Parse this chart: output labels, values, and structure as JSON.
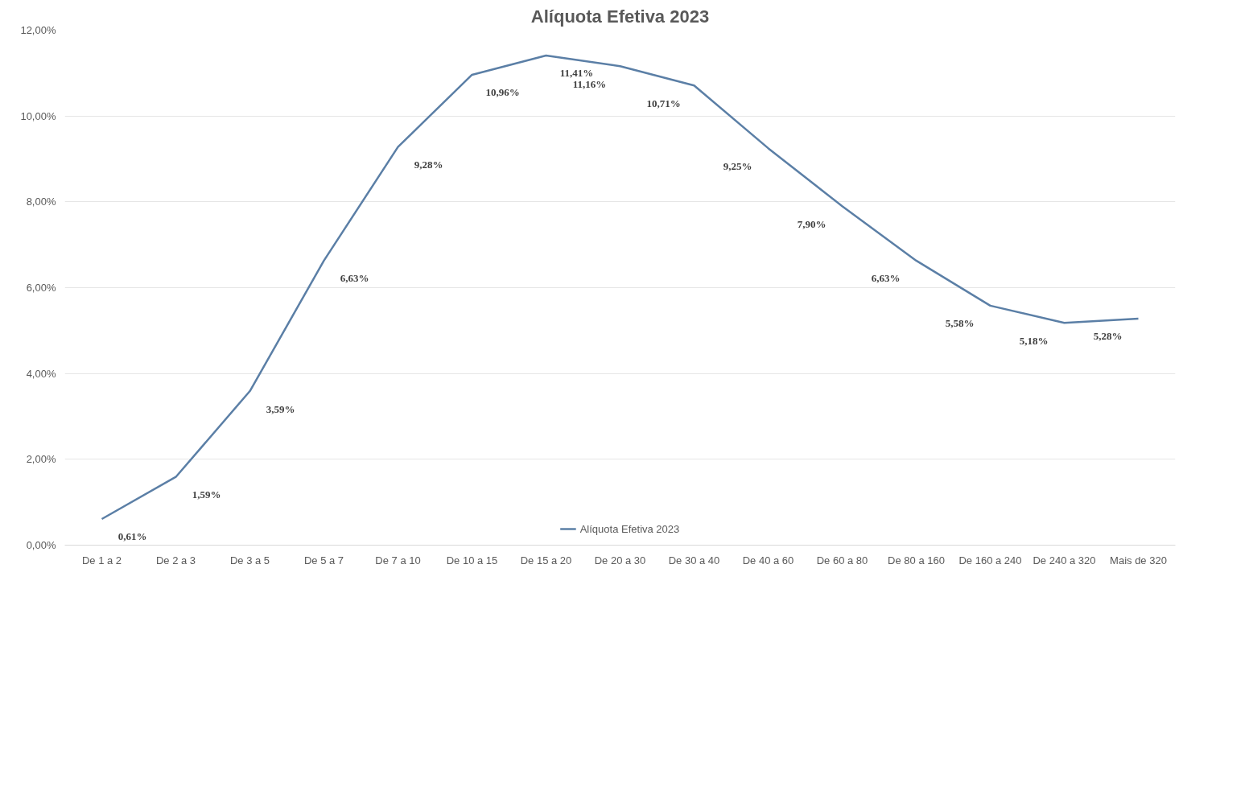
{
  "chart_data": {
    "type": "line",
    "title": "Alíquota Efetiva 2023",
    "categories": [
      "De 1 a 2",
      "De 2 a 3",
      "De 3 a 5",
      "De 5 a 7",
      "De 7 a 10",
      "De 10 a 15",
      "De 15 a 20",
      "De 20 a 30",
      "De 30 a 40",
      "De 40 a 60",
      "De 60 a 80",
      "De 80 a 160",
      "De 160 a 240",
      "De 240 a 320",
      "Mais de 320"
    ],
    "series": [
      {
        "name": "Alíquota Efetiva 2023",
        "color": "#5b7fa6",
        "values": [
          0.61,
          1.59,
          3.59,
          6.63,
          9.28,
          10.96,
          11.41,
          11.16,
          10.71,
          9.25,
          7.9,
          6.63,
          5.58,
          5.18,
          5.28
        ],
        "value_labels": [
          "0,61%",
          "1,59%",
          "3,59%",
          "6,63%",
          "9,28%",
          "10,96%",
          "11,41%",
          "11,16%",
          "10,71%",
          "9,25%",
          "7,90%",
          "6,63%",
          "5,58%",
          "5,18%",
          "5,28%"
        ]
      }
    ],
    "ylim": [
      0,
      12
    ],
    "yticks": [
      {
        "value": 0,
        "label": "0,00%"
      },
      {
        "value": 2,
        "label": "2,00%"
      },
      {
        "value": 4,
        "label": "4,00%"
      },
      {
        "value": 6,
        "label": "6,00%"
      },
      {
        "value": 8,
        "label": "8,00%"
      },
      {
        "value": 10,
        "label": "10,00%"
      },
      {
        "value": 12,
        "label": "12,00%"
      }
    ],
    "grid": "y",
    "legend": "bottom",
    "line_style": "solid"
  }
}
